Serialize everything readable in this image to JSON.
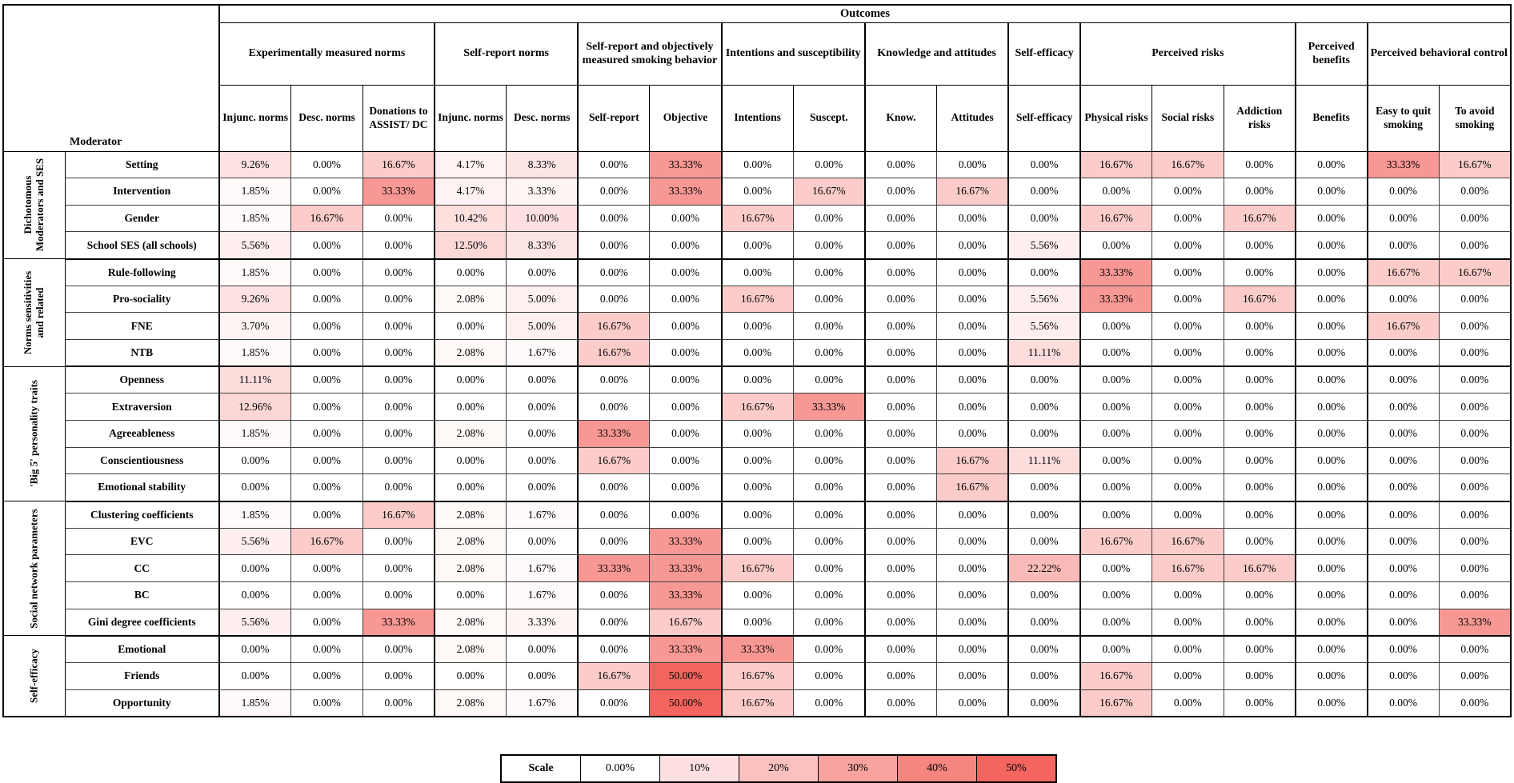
{
  "chart_data": {
    "type": "heatmap",
    "title": "Outcomes",
    "row_axis_label": "Moderator",
    "unit": "%",
    "value_format": "percent_2dp",
    "colors": {
      "min": "#ffffff",
      "max": "#f4655f"
    },
    "column_groups": [
      {
        "label": "Experimentally measured norms",
        "span": 3
      },
      {
        "label": "Self-report norms",
        "span": 2
      },
      {
        "label": "Self-report and objectively measured smoking behavior",
        "span": 2
      },
      {
        "label": "Intentions and susceptibility",
        "span": 2
      },
      {
        "label": "Knowledge and attitudes",
        "span": 2
      },
      {
        "label": "Self-efficacy",
        "span": 1
      },
      {
        "label": "Perceived risks",
        "span": 3
      },
      {
        "label": "Perceived benefits",
        "span": 1
      },
      {
        "label": "Perceived behavioral control",
        "span": 2
      }
    ],
    "columns": [
      "Injunc. norms",
      "Desc. norms",
      "Donations to ASSIST/ DC",
      "Injunc. norms",
      "Desc. norms",
      "Self-report",
      "Objective",
      "Intentions",
      "Suscept.",
      "Know.",
      "Attitudes",
      "Self-efficacy",
      "Physical risks",
      "Social risks",
      "Addiction risks",
      "Benefits",
      "Easy to quit smoking",
      "To avoid smoking"
    ],
    "row_groups": [
      {
        "label": "Dichotomous Moderators and SES",
        "rows": [
          {
            "name": "Setting",
            "values": [
              9.26,
              0.0,
              16.67,
              4.17,
              8.33,
              0.0,
              33.33,
              0.0,
              0.0,
              0.0,
              0.0,
              0.0,
              16.67,
              16.67,
              0.0,
              0.0,
              33.33,
              16.67
            ]
          },
          {
            "name": "Intervention",
            "values": [
              1.85,
              0.0,
              33.33,
              4.17,
              3.33,
              0.0,
              33.33,
              0.0,
              16.67,
              0.0,
              16.67,
              0.0,
              0.0,
              0.0,
              0.0,
              0.0,
              0.0,
              0.0
            ]
          },
          {
            "name": "Gender",
            "values": [
              1.85,
              16.67,
              0.0,
              10.42,
              10.0,
              0.0,
              0.0,
              16.67,
              0.0,
              0.0,
              0.0,
              0.0,
              16.67,
              0.0,
              16.67,
              0.0,
              0.0,
              0.0
            ]
          },
          {
            "name": "School SES (all schools)",
            "values": [
              5.56,
              0.0,
              0.0,
              12.5,
              8.33,
              0.0,
              0.0,
              0.0,
              0.0,
              0.0,
              0.0,
              5.56,
              0.0,
              0.0,
              0.0,
              0.0,
              0.0,
              0.0
            ]
          }
        ]
      },
      {
        "label": "Norms sensitivities and related",
        "rows": [
          {
            "name": "Rule-following",
            "values": [
              1.85,
              0.0,
              0.0,
              0.0,
              0.0,
              0.0,
              0.0,
              0.0,
              0.0,
              0.0,
              0.0,
              0.0,
              33.33,
              0.0,
              0.0,
              0.0,
              16.67,
              16.67
            ]
          },
          {
            "name": "Pro-sociality",
            "values": [
              9.26,
              0.0,
              0.0,
              2.08,
              5.0,
              0.0,
              0.0,
              16.67,
              0.0,
              0.0,
              0.0,
              5.56,
              33.33,
              0.0,
              16.67,
              0.0,
              0.0,
              0.0
            ]
          },
          {
            "name": "FNE",
            "values": [
              3.7,
              0.0,
              0.0,
              0.0,
              5.0,
              16.67,
              0.0,
              0.0,
              0.0,
              0.0,
              0.0,
              5.56,
              0.0,
              0.0,
              0.0,
              0.0,
              16.67,
              0.0
            ]
          },
          {
            "name": "NTB",
            "values": [
              1.85,
              0.0,
              0.0,
              2.08,
              1.67,
              16.67,
              0.0,
              0.0,
              0.0,
              0.0,
              0.0,
              11.11,
              0.0,
              0.0,
              0.0,
              0.0,
              0.0,
              0.0
            ]
          }
        ]
      },
      {
        "label": "'Big 5' personality traits",
        "rows": [
          {
            "name": "Openness",
            "values": [
              11.11,
              0.0,
              0.0,
              0.0,
              0.0,
              0.0,
              0.0,
              0.0,
              0.0,
              0.0,
              0.0,
              0.0,
              0.0,
              0.0,
              0.0,
              0.0,
              0.0,
              0.0
            ]
          },
          {
            "name": "Extraversion",
            "values": [
              12.96,
              0.0,
              0.0,
              0.0,
              0.0,
              0.0,
              0.0,
              16.67,
              33.33,
              0.0,
              0.0,
              0.0,
              0.0,
              0.0,
              0.0,
              0.0,
              0.0,
              0.0
            ]
          },
          {
            "name": "Agreeableness",
            "values": [
              1.85,
              0.0,
              0.0,
              2.08,
              0.0,
              33.33,
              0.0,
              0.0,
              0.0,
              0.0,
              0.0,
              0.0,
              0.0,
              0.0,
              0.0,
              0.0,
              0.0,
              0.0
            ]
          },
          {
            "name": "Conscientiousness",
            "values": [
              0.0,
              0.0,
              0.0,
              0.0,
              0.0,
              16.67,
              0.0,
              0.0,
              0.0,
              0.0,
              16.67,
              11.11,
              0.0,
              0.0,
              0.0,
              0.0,
              0.0,
              0.0
            ]
          },
          {
            "name": "Emotional stability",
            "values": [
              0.0,
              0.0,
              0.0,
              0.0,
              0.0,
              0.0,
              0.0,
              0.0,
              0.0,
              0.0,
              16.67,
              0.0,
              0.0,
              0.0,
              0.0,
              0.0,
              0.0,
              0.0
            ]
          }
        ]
      },
      {
        "label": "Social network parameters",
        "rows": [
          {
            "name": "Clustering coefficients",
            "values": [
              1.85,
              0.0,
              16.67,
              2.08,
              1.67,
              0.0,
              0.0,
              0.0,
              0.0,
              0.0,
              0.0,
              0.0,
              0.0,
              0.0,
              0.0,
              0.0,
              0.0,
              0.0
            ]
          },
          {
            "name": "EVC",
            "values": [
              5.56,
              16.67,
              0.0,
              2.08,
              0.0,
              0.0,
              33.33,
              0.0,
              0.0,
              0.0,
              0.0,
              0.0,
              16.67,
              16.67,
              0.0,
              0.0,
              0.0,
              0.0
            ]
          },
          {
            "name": "CC",
            "values": [
              0.0,
              0.0,
              0.0,
              2.08,
              1.67,
              33.33,
              33.33,
              16.67,
              0.0,
              0.0,
              0.0,
              22.22,
              0.0,
              16.67,
              16.67,
              0.0,
              0.0,
              0.0
            ]
          },
          {
            "name": "BC",
            "values": [
              0.0,
              0.0,
              0.0,
              0.0,
              1.67,
              0.0,
              33.33,
              0.0,
              0.0,
              0.0,
              0.0,
              0.0,
              0.0,
              0.0,
              0.0,
              0.0,
              0.0,
              0.0
            ]
          },
          {
            "name": "Gini degree coefficients",
            "values": [
              5.56,
              0.0,
              33.33,
              2.08,
              3.33,
              0.0,
              16.67,
              0.0,
              0.0,
              0.0,
              0.0,
              0.0,
              0.0,
              0.0,
              0.0,
              0.0,
              0.0,
              33.33
            ]
          }
        ]
      },
      {
        "label": "Self-efficacy",
        "rows": [
          {
            "name": "Emotional",
            "values": [
              0.0,
              0.0,
              0.0,
              2.08,
              0.0,
              0.0,
              33.33,
              33.33,
              0.0,
              0.0,
              0.0,
              0.0,
              0.0,
              0.0,
              0.0,
              0.0,
              0.0,
              0.0
            ]
          },
          {
            "name": "Friends",
            "values": [
              0.0,
              0.0,
              0.0,
              0.0,
              0.0,
              16.67,
              50.0,
              16.67,
              0.0,
              0.0,
              0.0,
              0.0,
              16.67,
              0.0,
              0.0,
              0.0,
              0.0,
              0.0
            ]
          },
          {
            "name": "Opportunity",
            "values": [
              1.85,
              0.0,
              0.0,
              2.08,
              1.67,
              0.0,
              50.0,
              16.67,
              0.0,
              0.0,
              0.0,
              0.0,
              16.67,
              0.0,
              0.0,
              0.0,
              0.0,
              0.0
            ]
          }
        ]
      },
      {
        "label": null
      }
    ],
    "scale": {
      "label": "Scale",
      "stops": [
        {
          "label": "0.00%",
          "value": 0
        },
        {
          "label": "10%",
          "value": 10
        },
        {
          "label": "20%",
          "value": 20
        },
        {
          "label": "30%",
          "value": 30
        },
        {
          "label": "40%",
          "value": 40
        },
        {
          "label": "50%",
          "value": 50
        }
      ]
    }
  }
}
